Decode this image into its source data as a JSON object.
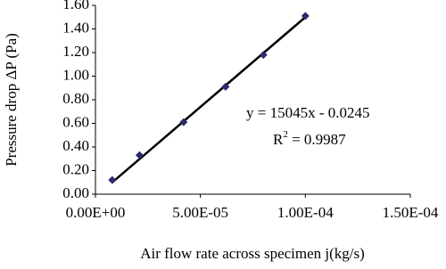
{
  "chart_data": {
    "type": "scatter",
    "x_label": "Air flow rate across specimen j(kg/s)",
    "y_label": "Pressure drop ΔP (Pa)",
    "series": [
      {
        "color": "#2b2b6e",
        "x": [
          8e-06,
          2.1e-05,
          4.2e-05,
          6.2e-05,
          8e-05,
          0.0001
        ],
        "values": [
          0.12,
          0.33,
          0.61,
          0.91,
          1.18,
          1.51
        ]
      }
    ],
    "trendline": {
      "color": "#000000",
      "x": [
        8e-06,
        0.0001
      ],
      "values": [
        0.1,
        1.5
      ]
    },
    "annotations": [
      {
        "text": "y = 15045x - 0.0245"
      },
      {
        "text": "R",
        "sup": "2",
        "rest": " = 0.9987"
      }
    ],
    "xlim": [
      0,
      0.00015
    ],
    "xticks": [
      {
        "value": 0,
        "label": "0.00E+00"
      },
      {
        "value": 5e-05,
        "label": "5.00E-05"
      },
      {
        "value": 0.0001,
        "label": "1.00E-04"
      },
      {
        "value": 0.00015,
        "label": "1.50E-04"
      }
    ],
    "ylim": [
      0,
      1.6
    ],
    "yticks": [
      {
        "value": 0,
        "label": "0.00"
      },
      {
        "value": 0.2,
        "label": "0.20"
      },
      {
        "value": 0.4,
        "label": "0.40"
      },
      {
        "value": 0.6,
        "label": "0.60"
      },
      {
        "value": 0.8,
        "label": "0.80"
      },
      {
        "value": 1.0,
        "label": "1.00"
      },
      {
        "value": 1.2,
        "label": "1.20"
      },
      {
        "value": 1.4,
        "label": "1.40"
      },
      {
        "value": 1.6,
        "label": "1.60"
      }
    ],
    "grid": false
  }
}
